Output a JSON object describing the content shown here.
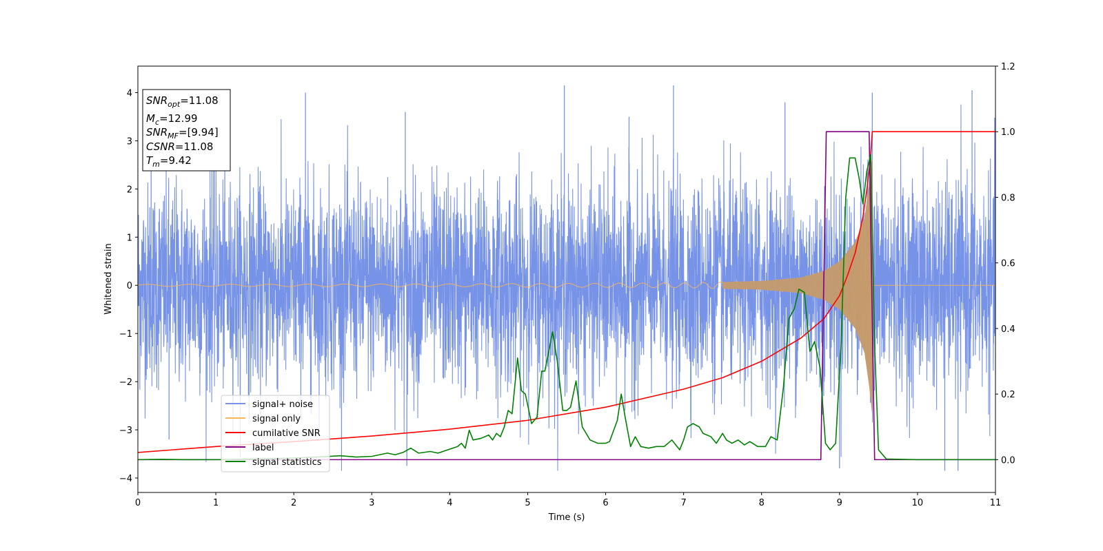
{
  "chart_data": {
    "type": "line",
    "xlabel": "Time (s)",
    "ylabel_left": "Whitened strain",
    "ylabel_right": "",
    "xlim": [
      0,
      11
    ],
    "ylim_left": [
      -4.3,
      4.55
    ],
    "ylim_right": [
      -0.1,
      1.2
    ],
    "x_ticks": [
      "0",
      "1",
      "2",
      "3",
      "4",
      "5",
      "6",
      "7",
      "8",
      "9",
      "10",
      "11"
    ],
    "y_ticks_left": [
      "4",
      "3",
      "2",
      "1",
      "0",
      "−1",
      "−2",
      "−3",
      "−4"
    ],
    "y_ticks_right": [
      "1.2",
      "1.0",
      "0.8",
      "0.6",
      "0.4",
      "0.2",
      "0.0"
    ],
    "legend_location": "lower-left",
    "info_box": {
      "snr_opt": {
        "pre": "SNR",
        "sub": "opt",
        "post": "=11.08"
      },
      "mc": {
        "pre": "M",
        "sub": "c",
        "post": "=12.99"
      },
      "snr_mf": {
        "pre": "SNR",
        "sub": "MF",
        "post": "=[9.94]"
      },
      "csnr": {
        "pre": "CSNR",
        "sub": "",
        "post": "=11.08"
      },
      "tm": {
        "pre": "T",
        "sub": "m",
        "post": "=9.42"
      }
    },
    "series": [
      {
        "name": "signal+ noise",
        "color": "#7793e8",
        "axis": "left",
        "kind": "noise",
        "envelope": {
          "typical_amplitude": 1.35,
          "peak_max": 4.2,
          "peak_min": -3.85
        },
        "spikes": [
          {
            "x": 0.17,
            "y": 2.95
          },
          {
            "x": 0.4,
            "y": -3.2
          },
          {
            "x": 0.95,
            "y": 3.0
          },
          {
            "x": 2.15,
            "y": 4.0
          },
          {
            "x": 3.43,
            "y": 3.6
          },
          {
            "x": 3.45,
            "y": -3.75
          },
          {
            "x": 5.47,
            "y": 4.15
          },
          {
            "x": 6.3,
            "y": 3.5
          },
          {
            "x": 6.87,
            "y": 4.15
          },
          {
            "x": 8.3,
            "y": 3.8
          },
          {
            "x": 9.0,
            "y": -3.8
          },
          {
            "x": 9.42,
            "y": 4.0
          },
          {
            "x": 10.35,
            "y": -3.85
          },
          {
            "x": 10.52,
            "y": -3.85
          },
          {
            "x": 10.7,
            "y": 4.05
          }
        ]
      },
      {
        "name": "signal only",
        "color": "#f6b55a",
        "axis": "left",
        "kind": "chirp",
        "amplitude_points": [
          {
            "x": 0.0,
            "y": 0.02
          },
          {
            "x": 4.0,
            "y": 0.03
          },
          {
            "x": 7.0,
            "y": 0.05
          },
          {
            "x": 8.0,
            "y": 0.09
          },
          {
            "x": 8.5,
            "y": 0.16
          },
          {
            "x": 8.8,
            "y": 0.3
          },
          {
            "x": 9.0,
            "y": 0.5
          },
          {
            "x": 9.2,
            "y": 0.9
          },
          {
            "x": 9.32,
            "y": 1.4
          },
          {
            "x": 9.38,
            "y": 2.1
          },
          {
            "x": 9.42,
            "y": 2.7
          },
          {
            "x": 9.43,
            "y": 0.0
          },
          {
            "x": 11.0,
            "y": 0.0
          }
        ]
      },
      {
        "name": "cumilative SNR",
        "color": "#ff0000",
        "axis": "right",
        "points": [
          {
            "x": 0.0,
            "y": 0.022
          },
          {
            "x": 1.0,
            "y": 0.04
          },
          {
            "x": 2.0,
            "y": 0.055
          },
          {
            "x": 3.0,
            "y": 0.072
          },
          {
            "x": 4.0,
            "y": 0.093
          },
          {
            "x": 5.0,
            "y": 0.12
          },
          {
            "x": 6.0,
            "y": 0.16
          },
          {
            "x": 7.0,
            "y": 0.215
          },
          {
            "x": 7.5,
            "y": 0.25
          },
          {
            "x": 8.0,
            "y": 0.3
          },
          {
            "x": 8.5,
            "y": 0.37
          },
          {
            "x": 8.8,
            "y": 0.43
          },
          {
            "x": 9.0,
            "y": 0.5
          },
          {
            "x": 9.1,
            "y": 0.56
          },
          {
            "x": 9.2,
            "y": 0.63
          },
          {
            "x": 9.3,
            "y": 0.74
          },
          {
            "x": 9.36,
            "y": 0.84
          },
          {
            "x": 9.4,
            "y": 0.93
          },
          {
            "x": 9.42,
            "y": 1.0
          },
          {
            "x": 11.0,
            "y": 1.0
          }
        ]
      },
      {
        "name": "label",
        "color": "#800080",
        "axis": "right",
        "points": [
          {
            "x": 0.0,
            "y": 0.0
          },
          {
            "x": 8.76,
            "y": 0.0
          },
          {
            "x": 8.83,
            "y": 1.0
          },
          {
            "x": 9.38,
            "y": 1.0
          },
          {
            "x": 9.45,
            "y": 0.0
          },
          {
            "x": 11.0,
            "y": 0.0
          }
        ]
      },
      {
        "name": "signal statistics",
        "color": "#008000",
        "axis": "right",
        "points": [
          {
            "x": 0.0,
            "y": 0.0
          },
          {
            "x": 0.3,
            "y": 0.001
          },
          {
            "x": 0.6,
            "y": 0.0
          },
          {
            "x": 1.0,
            "y": 0.0
          },
          {
            "x": 1.5,
            "y": 0.002
          },
          {
            "x": 2.0,
            "y": 0.005
          },
          {
            "x": 2.3,
            "y": 0.008
          },
          {
            "x": 2.6,
            "y": 0.012
          },
          {
            "x": 2.8,
            "y": 0.008
          },
          {
            "x": 3.0,
            "y": 0.01
          },
          {
            "x": 3.2,
            "y": 0.02
          },
          {
            "x": 3.3,
            "y": 0.015
          },
          {
            "x": 3.4,
            "y": 0.022
          },
          {
            "x": 3.5,
            "y": 0.035
          },
          {
            "x": 3.6,
            "y": 0.02
          },
          {
            "x": 3.75,
            "y": 0.025
          },
          {
            "x": 3.85,
            "y": 0.02
          },
          {
            "x": 4.0,
            "y": 0.032
          },
          {
            "x": 4.1,
            "y": 0.04
          },
          {
            "x": 4.15,
            "y": 0.05
          },
          {
            "x": 4.2,
            "y": 0.035
          },
          {
            "x": 4.25,
            "y": 0.09
          },
          {
            "x": 4.3,
            "y": 0.06
          },
          {
            "x": 4.4,
            "y": 0.065
          },
          {
            "x": 4.5,
            "y": 0.075
          },
          {
            "x": 4.55,
            "y": 0.06
          },
          {
            "x": 4.6,
            "y": 0.08
          },
          {
            "x": 4.65,
            "y": 0.07
          },
          {
            "x": 4.7,
            "y": 0.1
          },
          {
            "x": 4.75,
            "y": 0.15
          },
          {
            "x": 4.8,
            "y": 0.14
          },
          {
            "x": 4.87,
            "y": 0.31
          },
          {
            "x": 4.92,
            "y": 0.21
          },
          {
            "x": 4.97,
            "y": 0.2
          },
          {
            "x": 5.05,
            "y": 0.11
          },
          {
            "x": 5.12,
            "y": 0.13
          },
          {
            "x": 5.18,
            "y": 0.27
          },
          {
            "x": 5.22,
            "y": 0.27
          },
          {
            "x": 5.32,
            "y": 0.39
          },
          {
            "x": 5.38,
            "y": 0.3
          },
          {
            "x": 5.45,
            "y": 0.15
          },
          {
            "x": 5.5,
            "y": 0.15
          },
          {
            "x": 5.55,
            "y": 0.16
          },
          {
            "x": 5.62,
            "y": 0.24
          },
          {
            "x": 5.7,
            "y": 0.1
          },
          {
            "x": 5.8,
            "y": 0.06
          },
          {
            "x": 5.9,
            "y": 0.05
          },
          {
            "x": 6.0,
            "y": 0.05
          },
          {
            "x": 6.05,
            "y": 0.055
          },
          {
            "x": 6.15,
            "y": 0.12
          },
          {
            "x": 6.2,
            "y": 0.2
          },
          {
            "x": 6.25,
            "y": 0.13
          },
          {
            "x": 6.32,
            "y": 0.04
          },
          {
            "x": 6.38,
            "y": 0.07
          },
          {
            "x": 6.45,
            "y": 0.04
          },
          {
            "x": 6.55,
            "y": 0.035
          },
          {
            "x": 6.65,
            "y": 0.04
          },
          {
            "x": 6.75,
            "y": 0.04
          },
          {
            "x": 6.85,
            "y": 0.06
          },
          {
            "x": 6.95,
            "y": 0.03
          },
          {
            "x": 7.0,
            "y": 0.06
          },
          {
            "x": 7.05,
            "y": 0.1
          },
          {
            "x": 7.12,
            "y": 0.11
          },
          {
            "x": 7.2,
            "y": 0.1
          },
          {
            "x": 7.25,
            "y": 0.08
          },
          {
            "x": 7.35,
            "y": 0.07
          },
          {
            "x": 7.42,
            "y": 0.05
          },
          {
            "x": 7.5,
            "y": 0.08
          },
          {
            "x": 7.55,
            "y": 0.06
          },
          {
            "x": 7.62,
            "y": 0.05
          },
          {
            "x": 7.7,
            "y": 0.06
          },
          {
            "x": 7.78,
            "y": 0.045
          },
          {
            "x": 7.85,
            "y": 0.055
          },
          {
            "x": 7.95,
            "y": 0.04
          },
          {
            "x": 8.05,
            "y": 0.04
          },
          {
            "x": 8.12,
            "y": 0.07
          },
          {
            "x": 8.2,
            "y": 0.06
          },
          {
            "x": 8.28,
            "y": 0.22
          },
          {
            "x": 8.35,
            "y": 0.43
          },
          {
            "x": 8.42,
            "y": 0.46
          },
          {
            "x": 8.48,
            "y": 0.52
          },
          {
            "x": 8.55,
            "y": 0.51
          },
          {
            "x": 8.62,
            "y": 0.33
          },
          {
            "x": 8.68,
            "y": 0.36
          },
          {
            "x": 8.75,
            "y": 0.28
          },
          {
            "x": 8.82,
            "y": 0.05
          },
          {
            "x": 8.88,
            "y": 0.03
          },
          {
            "x": 8.95,
            "y": 0.05
          },
          {
            "x": 9.02,
            "y": 0.35
          },
          {
            "x": 9.08,
            "y": 0.8
          },
          {
            "x": 9.13,
            "y": 0.92
          },
          {
            "x": 9.2,
            "y": 0.92
          },
          {
            "x": 9.25,
            "y": 0.86
          },
          {
            "x": 9.3,
            "y": 0.78
          },
          {
            "x": 9.35,
            "y": 0.88
          },
          {
            "x": 9.4,
            "y": 0.93
          },
          {
            "x": 9.45,
            "y": 0.35
          },
          {
            "x": 9.5,
            "y": 0.03
          },
          {
            "x": 9.6,
            "y": 0.002
          },
          {
            "x": 10.0,
            "y": 0.0
          },
          {
            "x": 11.0,
            "y": 0.0
          }
        ]
      }
    ]
  }
}
